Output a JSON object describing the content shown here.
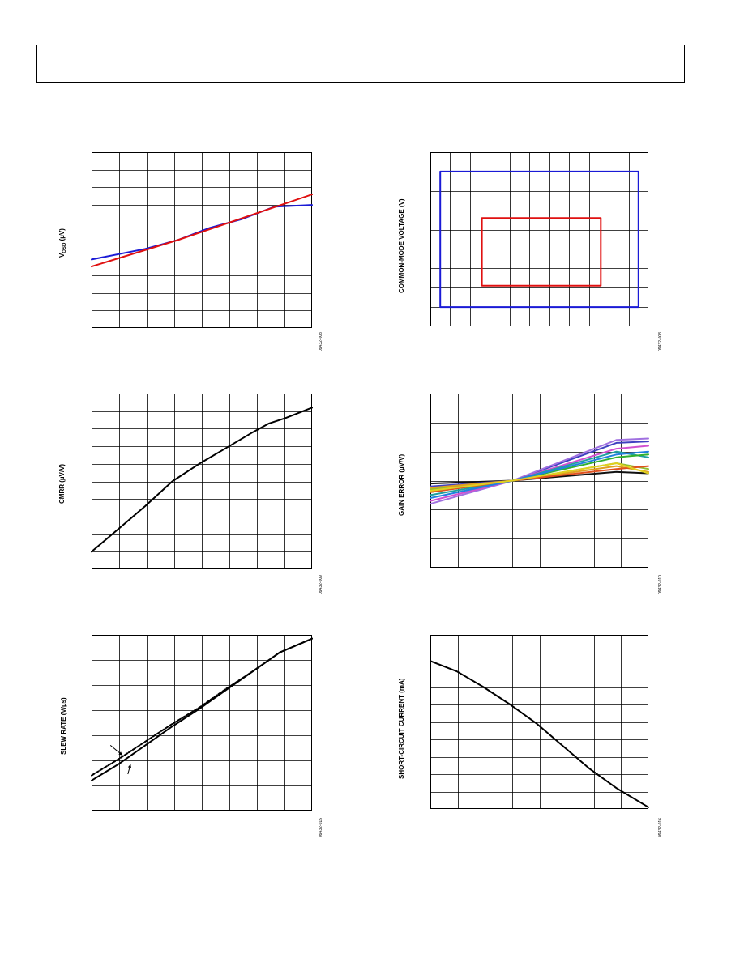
{
  "page": {
    "header": ""
  },
  "chart_data": [
    {
      "id": "vosd",
      "type": "line",
      "title": "",
      "ylabel": "V_OSD (µV)",
      "ylabel_main": "V",
      "ylabel_sub": "OSD",
      "ylabel_rest": " (µV)",
      "fig_code": "09432-008",
      "x_range": [
        0,
        8.2
      ],
      "ylim": [
        0,
        10
      ],
      "xgrid": 8,
      "ygrid": 10,
      "series": [
        {
          "color": "#1a1ad6",
          "x": [
            0,
            2,
            3.2,
            4.4,
            5.6,
            6.8,
            8.2
          ],
          "y": [
            3.9,
            4.5,
            5.0,
            5.7,
            6.2,
            6.9,
            7.0
          ]
        },
        {
          "color": "#e01010",
          "x": [
            0,
            3.2,
            8.2
          ],
          "y": [
            3.5,
            5.0,
            7.6
          ]
        }
      ]
    },
    {
      "id": "cmv",
      "type": "line",
      "title": "",
      "ylabel": "COMMON-MODE VOLTAGE (V)",
      "fig_code": "09432-008",
      "x_range": [
        0,
        11
      ],
      "ylim": [
        0,
        9
      ],
      "xgrid": 11,
      "ygrid": 9,
      "series": [
        {
          "color": "#1a1ad6",
          "closed": true,
          "x": [
            0.5,
            10.5,
            10.5,
            0.5
          ],
          "y": [
            8.0,
            8.0,
            1.0,
            1.0
          ]
        },
        {
          "color": "#e01010",
          "closed": true,
          "x": [
            2.6,
            8.6,
            8.6,
            2.6
          ],
          "y": [
            5.6,
            5.6,
            2.1,
            2.1
          ]
        }
      ]
    },
    {
      "id": "cmrr",
      "type": "line",
      "title": "",
      "ylabel": "CMRR (µV/V)",
      "fig_code": "09432-009",
      "x_range": [
        0,
        8.2
      ],
      "ylim": [
        0,
        10
      ],
      "xgrid": 8,
      "ygrid": 10,
      "series": [
        {
          "color": "#000000",
          "x": [
            0,
            1,
            2,
            3,
            4,
            5,
            6,
            6.6,
            7.2,
            8.2
          ],
          "y": [
            1.0,
            2.3,
            3.6,
            5.0,
            6.0,
            6.9,
            7.8,
            8.3,
            8.6,
            9.2
          ]
        }
      ]
    },
    {
      "id": "gain",
      "type": "line",
      "title": "",
      "ylabel": "GAIN ERROR (µV/V)",
      "fig_code": "09432-010",
      "x_range": [
        0,
        8.2
      ],
      "ylim": [
        0,
        6
      ],
      "xgrid": 8,
      "ygrid": 6,
      "series": [
        {
          "color": "#101010",
          "x": [
            0,
            3.1,
            7.0,
            8.2
          ],
          "y": [
            2.9,
            3.0,
            3.3,
            3.25
          ]
        },
        {
          "color": "#4040c0",
          "x": [
            0,
            3.1,
            7.0,
            8.2
          ],
          "y": [
            2.8,
            3.0,
            4.3,
            4.35
          ]
        },
        {
          "color": "#a070e0",
          "x": [
            0,
            3.1,
            7.0,
            8.2
          ],
          "y": [
            2.2,
            3.0,
            4.4,
            4.45
          ]
        },
        {
          "color": "#d050d0",
          "x": [
            0,
            3.1,
            7.0,
            8.2
          ],
          "y": [
            2.3,
            3.0,
            4.1,
            4.2
          ]
        },
        {
          "color": "#20a0a0",
          "x": [
            0,
            3.1,
            7.0,
            8.2
          ],
          "y": [
            2.5,
            3.0,
            4.0,
            3.8
          ]
        },
        {
          "color": "#30b030",
          "x": [
            0,
            3.1,
            7.0,
            8.2
          ],
          "y": [
            2.6,
            3.0,
            3.8,
            3.9
          ]
        },
        {
          "color": "#90c030",
          "x": [
            0,
            3.1,
            7.0,
            8.2
          ],
          "y": [
            2.7,
            3.0,
            3.6,
            3.4
          ]
        },
        {
          "color": "#e0a020",
          "x": [
            0,
            3.1,
            7.0,
            8.2
          ],
          "y": [
            2.75,
            3.0,
            3.5,
            3.3
          ]
        },
        {
          "color": "#e05020",
          "x": [
            0,
            3.1,
            7.0,
            8.2
          ],
          "y": [
            2.6,
            3.0,
            3.4,
            3.5
          ]
        },
        {
          "color": "#2080e0",
          "x": [
            0,
            3.1,
            7.0,
            8.2
          ],
          "y": [
            2.4,
            3.0,
            3.9,
            4.0
          ]
        },
        {
          "color": "#e0d020",
          "x": [
            0,
            3.1,
            7.0,
            8.2
          ],
          "y": [
            2.65,
            3.0,
            3.6,
            3.25
          ]
        }
      ]
    },
    {
      "id": "slew",
      "type": "line",
      "title": "",
      "ylabel": "SLEW RATE (V/µs)",
      "fig_code": "09432-015",
      "x_range": [
        0,
        8.2
      ],
      "ylim": [
        0,
        7
      ],
      "xgrid": 8,
      "ygrid": 7,
      "series": [
        {
          "color": "#000000",
          "x": [
            0,
            1,
            2,
            3,
            4,
            5,
            6,
            7,
            8.2
          ],
          "y": [
            1.2,
            1.85,
            2.6,
            3.35,
            4.05,
            4.8,
            5.55,
            6.3,
            6.85
          ]
        },
        {
          "color": "#000000",
          "dashed": true,
          "x": [
            0,
            1,
            2,
            3,
            4,
            5,
            6,
            7,
            8.2
          ],
          "y": [
            1.4,
            2.05,
            2.75,
            3.45,
            4.1,
            4.85,
            5.55,
            6.3,
            6.85
          ]
        }
      ],
      "arrows": [
        {
          "x1": 0.7,
          "y1": 2.6,
          "x2": 1.15,
          "y2": 2.2
        },
        {
          "x1": 1.35,
          "y1": 1.45,
          "x2": 1.45,
          "y2": 1.85
        }
      ]
    },
    {
      "id": "short",
      "type": "line",
      "title": "",
      "ylabel": "SHORT-CIRCUIT CURRENT (mA)",
      "fig_code": "09432-016",
      "x_range": [
        0,
        8.2
      ],
      "ylim": [
        0,
        10
      ],
      "xgrid": 8,
      "ygrid": 10,
      "series": [
        {
          "color": "#000000",
          "x": [
            0,
            1,
            2,
            3,
            4,
            5,
            6,
            7,
            8.2
          ],
          "y": [
            8.5,
            7.9,
            7.0,
            6.0,
            4.9,
            3.6,
            2.3,
            1.2,
            0.1
          ]
        }
      ]
    }
  ]
}
